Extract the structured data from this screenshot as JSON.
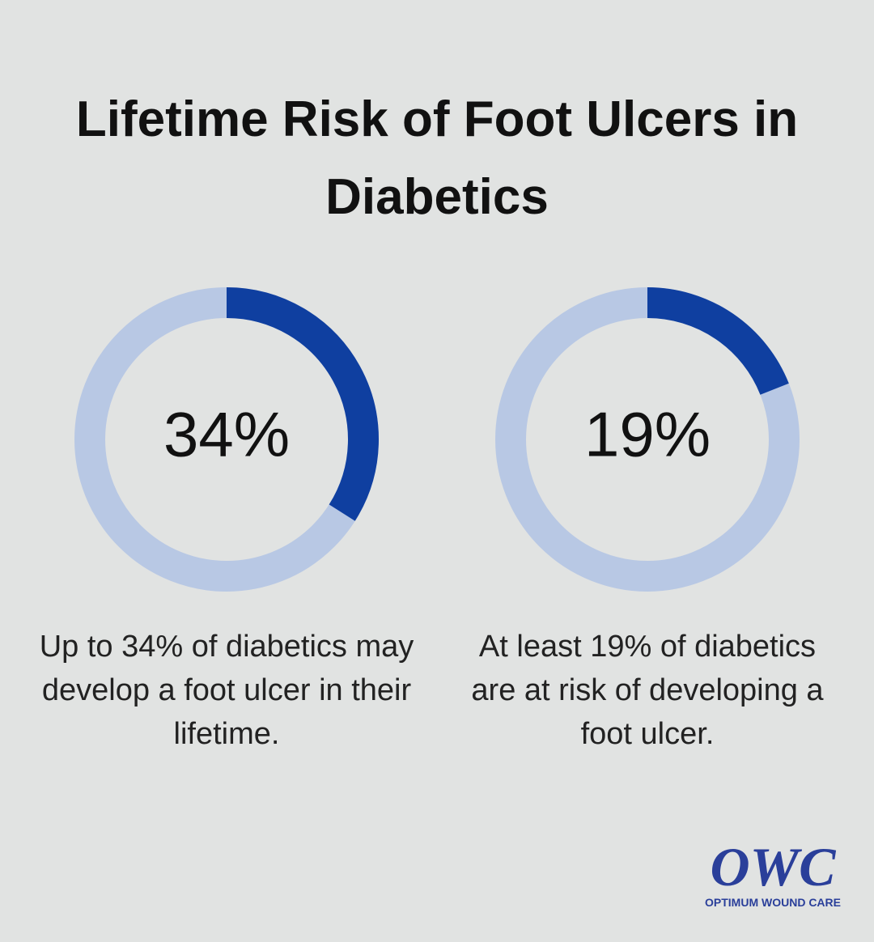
{
  "title": "Lifetime Risk of Foot Ulcers in Diabetics",
  "chart_data": [
    {
      "type": "donut",
      "values": [
        34
      ],
      "value_labels": [
        "34%"
      ],
      "caption": "Up to 34% of diabetics may develop a foot ulcer in their lifetime.",
      "color": "#0f3fa0",
      "track_color": "#b8c8e4"
    },
    {
      "type": "donut",
      "values": [
        19
      ],
      "value_labels": [
        "19%"
      ],
      "caption": "At least 19% of diabetics are at risk of developing a foot ulcer.",
      "color": "#0f3fa0",
      "track_color": "#b8c8e4"
    }
  ],
  "logo": {
    "mark": "OWC",
    "text": "OPTIMUM WOUND CARE"
  }
}
